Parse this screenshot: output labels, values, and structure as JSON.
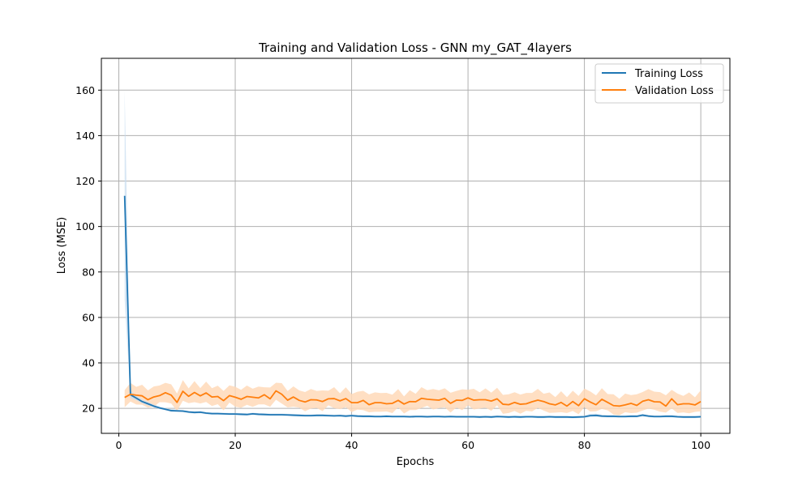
{
  "chart_data": {
    "type": "line",
    "title": "Training and Validation Loss - GNN my_GAT_4layers",
    "xlabel": "Epochs",
    "ylabel": "Loss (MSE)",
    "xlim": [
      -3,
      105
    ],
    "ylim": [
      9,
      174
    ],
    "xticks": [
      0,
      20,
      40,
      60,
      80,
      100
    ],
    "yticks": [
      20,
      40,
      60,
      80,
      100,
      120,
      140,
      160
    ],
    "grid": true,
    "legend_position": "top-right",
    "series": [
      {
        "name": "Training Loss",
        "color": "#1f77b4",
        "band_color": "#c6dbef",
        "x": [
          1,
          2,
          3,
          4,
          5,
          6,
          7,
          8,
          9,
          10,
          11,
          12,
          13,
          14,
          15,
          16,
          17,
          18,
          19,
          20,
          21,
          22,
          23,
          24,
          25,
          26,
          27,
          28,
          29,
          30,
          31,
          32,
          33,
          34,
          35,
          36,
          37,
          38,
          39,
          40,
          41,
          42,
          43,
          44,
          45,
          46,
          47,
          48,
          49,
          50,
          51,
          52,
          53,
          54,
          55,
          56,
          57,
          58,
          59,
          60,
          61,
          62,
          63,
          64,
          65,
          66,
          67,
          68,
          69,
          70,
          71,
          72,
          73,
          74,
          75,
          76,
          77,
          78,
          79,
          80,
          81,
          82,
          83,
          84,
          85,
          86,
          87,
          88,
          89,
          90,
          91,
          92,
          93,
          94,
          95,
          96,
          97,
          98,
          99,
          100
        ],
        "values": [
          113.5,
          26,
          24.5,
          23,
          22,
          21,
          20.2,
          19.6,
          19,
          18.9,
          18.8,
          18.4,
          18.2,
          18.3,
          17.9,
          17.7,
          17.7,
          17.6,
          17.5,
          17.5,
          17.4,
          17.3,
          17.6,
          17.4,
          17.3,
          17.2,
          17.2,
          17.2,
          17.1,
          17.0,
          16.9,
          16.8,
          16.8,
          16.9,
          16.9,
          16.8,
          16.7,
          16.8,
          16.6,
          16.8,
          16.6,
          16.5,
          16.5,
          16.4,
          16.4,
          16.5,
          16.4,
          16.4,
          16.4,
          16.3,
          16.4,
          16.4,
          16.3,
          16.4,
          16.4,
          16.3,
          16.4,
          16.3,
          16.3,
          16.3,
          16.3,
          16.2,
          16.3,
          16.2,
          16.4,
          16.3,
          16.2,
          16.3,
          16.2,
          16.3,
          16.3,
          16.2,
          16.2,
          16.3,
          16.2,
          16.2,
          16.2,
          16.1,
          16.2,
          16.3,
          16.8,
          16.9,
          16.6,
          16.5,
          16.5,
          16.4,
          16.4,
          16.5,
          16.5,
          17.0,
          16.6,
          16.4,
          16.4,
          16.5,
          16.5,
          16.3,
          16.2,
          16.2,
          16.2,
          16.3
        ],
        "lower": [
          68,
          24.5,
          23.5,
          22.2,
          21.3,
          20.4,
          19.7,
          19.1,
          18.5,
          18.4,
          18.3,
          17.9,
          17.7,
          17.8,
          17.4,
          17.2,
          17.2,
          17.1,
          17.0,
          17.0,
          16.9,
          16.8,
          17.1,
          16.9,
          16.8,
          16.7,
          16.7,
          16.7,
          16.6,
          16.5,
          16.4,
          16.3,
          16.3,
          16.4,
          16.4,
          16.3,
          16.2,
          16.3,
          16.1,
          16.3,
          16.1,
          16.0,
          16.0,
          15.9,
          15.9,
          16.0,
          15.9,
          15.9,
          15.9,
          15.8,
          15.9,
          15.9,
          15.8,
          15.9,
          15.9,
          15.8,
          15.9,
          15.8,
          15.8,
          15.8,
          15.8,
          15.7,
          15.8,
          15.7,
          15.9,
          15.8,
          15.7,
          15.8,
          15.7,
          15.8,
          15.8,
          15.7,
          15.7,
          15.8,
          15.7,
          15.7,
          15.7,
          15.6,
          15.7,
          15.8,
          16.2,
          16.3,
          16.1,
          16.0,
          16.0,
          15.9,
          15.9,
          16.0,
          16.0,
          16.4,
          16.1,
          15.9,
          15.9,
          16.0,
          16.0,
          15.8,
          15.7,
          15.7,
          15.7,
          15.8
        ],
        "upper": [
          160,
          27.8,
          25.6,
          23.9,
          22.8,
          21.7,
          20.8,
          20.2,
          19.6,
          19.4,
          19.3,
          18.9,
          18.7,
          18.8,
          18.4,
          18.2,
          18.2,
          18.1,
          18.0,
          18.0,
          17.9,
          17.8,
          18.1,
          17.9,
          17.8,
          17.7,
          17.7,
          17.7,
          17.6,
          17.5,
          17.4,
          17.3,
          17.3,
          17.4,
          17.4,
          17.3,
          17.2,
          17.3,
          17.1,
          17.3,
          17.1,
          17.0,
          17.0,
          16.9,
          16.9,
          17.0,
          16.9,
          16.9,
          16.9,
          16.8,
          16.9,
          16.9,
          16.8,
          16.9,
          16.9,
          16.8,
          16.9,
          16.8,
          16.8,
          16.8,
          16.8,
          16.7,
          16.8,
          16.7,
          16.9,
          16.8,
          16.7,
          16.8,
          16.7,
          16.8,
          16.8,
          16.7,
          16.7,
          16.8,
          16.7,
          16.7,
          16.7,
          16.6,
          16.7,
          16.8,
          17.6,
          17.7,
          17.1,
          17.0,
          17.0,
          16.9,
          16.9,
          17.0,
          17.0,
          17.6,
          17.1,
          16.9,
          16.9,
          17.0,
          17.0,
          16.8,
          16.7,
          16.7,
          16.7,
          16.8
        ]
      },
      {
        "name": "Validation Loss",
        "color": "#ff7f0e",
        "band_color": "#ffd9b8",
        "x": [
          1,
          2,
          3,
          4,
          5,
          6,
          7,
          8,
          9,
          10,
          11,
          12,
          13,
          14,
          15,
          16,
          17,
          18,
          19,
          20,
          21,
          22,
          23,
          24,
          25,
          26,
          27,
          28,
          29,
          30,
          31,
          32,
          33,
          34,
          35,
          36,
          37,
          38,
          39,
          40,
          41,
          42,
          43,
          44,
          45,
          46,
          47,
          48,
          49,
          50,
          51,
          52,
          53,
          54,
          55,
          56,
          57,
          58,
          59,
          60,
          61,
          62,
          63,
          64,
          65,
          66,
          67,
          68,
          69,
          70,
          71,
          72,
          73,
          74,
          75,
          76,
          77,
          78,
          79,
          80,
          81,
          82,
          83,
          84,
          85,
          86,
          87,
          88,
          89,
          90,
          91,
          92,
          93,
          94,
          95,
          96,
          97,
          98,
          99,
          100
        ],
        "values": [
          24.8,
          26.2,
          25.8,
          25.5,
          23.8,
          25.0,
          25.6,
          26.9,
          25.8,
          22.6,
          27.5,
          25.3,
          27.0,
          25.5,
          26.8,
          25.0,
          25.2,
          23.4,
          25.6,
          24.9,
          24.0,
          25.2,
          24.9,
          24.6,
          26.0,
          24.2,
          27.7,
          26.2,
          23.6,
          25.0,
          23.5,
          22.8,
          23.8,
          23.7,
          23.0,
          24.2,
          24.3,
          23.3,
          24.3,
          22.5,
          22.5,
          23.5,
          21.6,
          22.5,
          22.5,
          22.0,
          22.2,
          23.5,
          21.9,
          23.0,
          22.9,
          24.4,
          24.0,
          23.8,
          23.6,
          24.4,
          22.2,
          23.6,
          23.5,
          24.6,
          23.6,
          23.8,
          23.8,
          23.2,
          24.2,
          21.8,
          21.6,
          22.6,
          21.8,
          22.0,
          22.9,
          23.6,
          23.0,
          22.0,
          21.5,
          22.6,
          21.0,
          23.0,
          21.2,
          24.2,
          22.8,
          21.6,
          24.0,
          22.6,
          21.2,
          21.0,
          21.5,
          22.2,
          21.3,
          23.1,
          23.8,
          22.9,
          22.8,
          21.0,
          24.2,
          21.6,
          22.0,
          22.0,
          21.5,
          23.0
        ]
      }
    ]
  }
}
